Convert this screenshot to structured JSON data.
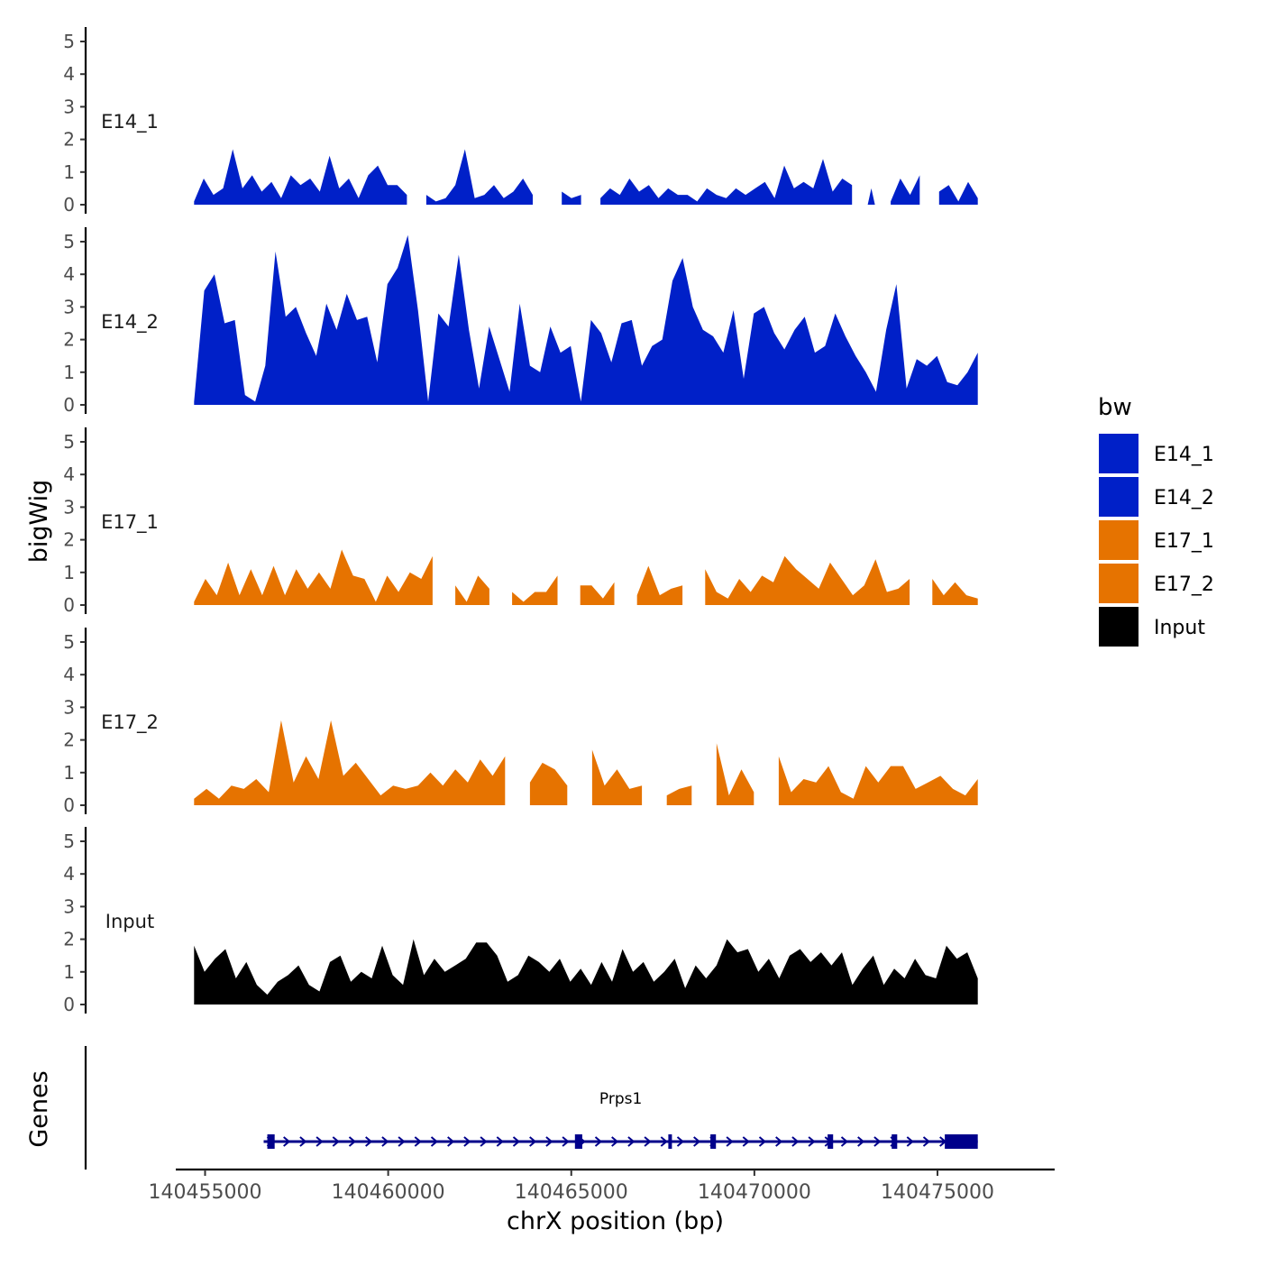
{
  "chart_data": {
    "type": "area",
    "title": "",
    "ylabel": "bigWig",
    "xlabel": "chrX position (bp)",
    "xlim": [
      140454200,
      140478200
    ],
    "ylim": [
      0,
      5
    ],
    "y_ticks": [
      0,
      1,
      2,
      3,
      4,
      5
    ],
    "x_ticks": [
      140455000,
      140460000,
      140465000,
      140470000,
      140475000
    ],
    "x_tick_labels": [
      "140455000",
      "140460000",
      "140465000",
      "140470000",
      "140475000"
    ],
    "data_range": [
      140454700,
      140476100
    ],
    "legend": {
      "title": "bw",
      "position": "right",
      "entries": [
        {
          "label": "E14_1",
          "color": "#0020C8"
        },
        {
          "label": "E14_2",
          "color": "#0020C8"
        },
        {
          "label": "E17_1",
          "color": "#E67300"
        },
        {
          "label": "E17_2",
          "color": "#E67300"
        },
        {
          "label": "Input",
          "color": "#000000"
        }
      ]
    },
    "series": [
      {
        "name": "E14_1",
        "color": "#0020C8",
        "values": [
          0.1,
          0.8,
          0.3,
          0.5,
          1.7,
          0.5,
          0.9,
          0.4,
          0.7,
          0.2,
          0.9,
          0.6,
          0.8,
          0.4,
          1.5,
          0.5,
          0.8,
          0.2,
          0.9,
          1.2,
          0.6,
          0.6,
          0.3,
          null,
          0.3,
          0.1,
          0.2,
          0.6,
          1.7,
          0.2,
          0.3,
          0.6,
          0.2,
          0.4,
          0.8,
          0.3,
          null,
          null,
          0.4,
          0.2,
          0.3,
          null,
          0.2,
          0.5,
          0.3,
          0.8,
          0.4,
          0.6,
          0.2,
          0.5,
          0.3,
          0.3,
          0.1,
          0.5,
          0.3,
          0.2,
          0.5,
          0.3,
          0.5,
          0.7,
          0.2,
          1.2,
          0.5,
          0.7,
          0.5,
          1.4,
          0.4,
          0.8,
          0.6,
          null,
          0.5,
          null,
          0.1,
          0.8,
          0.3,
          0.9,
          null,
          0.4,
          0.6,
          0.1,
          0.7,
          0.2
        ]
      },
      {
        "name": "E14_2",
        "color": "#0020C8",
        "values": [
          0.1,
          3.5,
          4.0,
          2.5,
          2.6,
          0.3,
          0.1,
          1.2,
          4.7,
          2.7,
          3.0,
          2.2,
          1.5,
          3.1,
          2.3,
          3.4,
          2.6,
          2.7,
          1.3,
          3.7,
          4.2,
          5.2,
          2.9,
          0.1,
          2.8,
          2.4,
          4.6,
          2.3,
          0.5,
          2.4,
          1.4,
          0.4,
          3.1,
          1.2,
          1.0,
          2.4,
          1.6,
          1.8,
          0.1,
          2.6,
          2.2,
          1.3,
          2.5,
          2.6,
          1.2,
          1.8,
          2.0,
          3.8,
          4.5,
          3.0,
          2.3,
          2.1,
          1.6,
          2.9,
          0.8,
          2.8,
          3.0,
          2.2,
          1.7,
          2.3,
          2.7,
          1.6,
          1.8,
          2.8,
          2.1,
          1.5,
          1.0,
          0.4,
          2.3,
          3.7,
          0.5,
          1.4,
          1.2,
          1.5,
          0.7,
          0.6,
          1.0,
          1.6
        ]
      },
      {
        "name": "E17_1",
        "color": "#E67300",
        "values": [
          0.1,
          0.8,
          0.3,
          1.3,
          0.3,
          1.1,
          0.3,
          1.2,
          0.3,
          1.1,
          0.5,
          1.0,
          0.5,
          1.7,
          0.9,
          0.8,
          0.1,
          0.9,
          0.4,
          1.0,
          0.8,
          1.5,
          null,
          0.6,
          0.1,
          0.9,
          0.5,
          null,
          0.4,
          0.1,
          0.4,
          0.4,
          0.9,
          null,
          0.6,
          0.6,
          0.2,
          0.7,
          null,
          0.3,
          1.2,
          0.3,
          0.5,
          0.6,
          null,
          1.1,
          0.4,
          0.2,
          0.8,
          0.4,
          0.9,
          0.7,
          1.5,
          1.1,
          0.8,
          0.5,
          1.3,
          0.8,
          0.3,
          0.6,
          1.4,
          0.4,
          0.5,
          0.8,
          null,
          0.8,
          0.3,
          0.7,
          0.3,
          0.2
        ]
      },
      {
        "name": "E17_2",
        "color": "#E67300",
        "values": [
          0.2,
          0.5,
          0.2,
          0.6,
          0.5,
          0.8,
          0.4,
          2.6,
          0.7,
          1.5,
          0.8,
          2.6,
          0.9,
          1.3,
          0.8,
          0.3,
          0.6,
          0.5,
          0.6,
          1.0,
          0.6,
          1.1,
          0.7,
          1.4,
          0.9,
          1.5,
          null,
          0.7,
          1.3,
          1.1,
          0.6,
          null,
          1.7,
          0.6,
          1.1,
          0.5,
          0.6,
          null,
          0.3,
          0.5,
          0.6,
          null,
          1.9,
          0.3,
          1.1,
          0.4,
          null,
          1.5,
          0.4,
          0.8,
          0.7,
          1.2,
          0.4,
          0.2,
          1.2,
          0.7,
          1.2,
          1.2,
          0.5,
          0.7,
          0.9,
          0.5,
          0.3,
          0.8
        ]
      },
      {
        "name": "Input",
        "color": "#000000",
        "values": [
          1.8,
          1.0,
          1.4,
          1.7,
          0.8,
          1.3,
          0.6,
          0.3,
          0.7,
          0.9,
          1.2,
          0.6,
          0.4,
          1.3,
          1.5,
          0.7,
          1.0,
          0.8,
          1.8,
          0.9,
          0.6,
          2.0,
          0.9,
          1.4,
          1.0,
          1.2,
          1.4,
          1.9,
          1.9,
          1.5,
          0.7,
          0.9,
          1.5,
          1.3,
          1.0,
          1.4,
          0.7,
          1.1,
          0.6,
          1.3,
          0.7,
          1.7,
          1.0,
          1.3,
          0.7,
          1.0,
          1.4,
          0.5,
          1.2,
          0.8,
          1.2,
          2.0,
          1.6,
          1.7,
          1.0,
          1.4,
          0.8,
          1.5,
          1.7,
          1.3,
          1.6,
          1.2,
          1.6,
          0.6,
          1.1,
          1.5,
          0.6,
          1.1,
          0.8,
          1.4,
          0.9,
          0.8,
          1.8,
          1.4,
          1.6,
          0.8
        ]
      }
    ],
    "genes_track": {
      "label": "Genes",
      "genes": [
        {
          "name": "Prps1",
          "start": 140456600,
          "end": 140476100,
          "strand": "+",
          "exons": [
            [
              140456700,
              140456900
            ],
            [
              140465100,
              140465300
            ],
            [
              140467650,
              140467720
            ],
            [
              140468800,
              140468950
            ],
            [
              140472000,
              140472150
            ],
            [
              140473750,
              140473900
            ],
            [
              140475200,
              140476100
            ]
          ]
        }
      ]
    }
  }
}
